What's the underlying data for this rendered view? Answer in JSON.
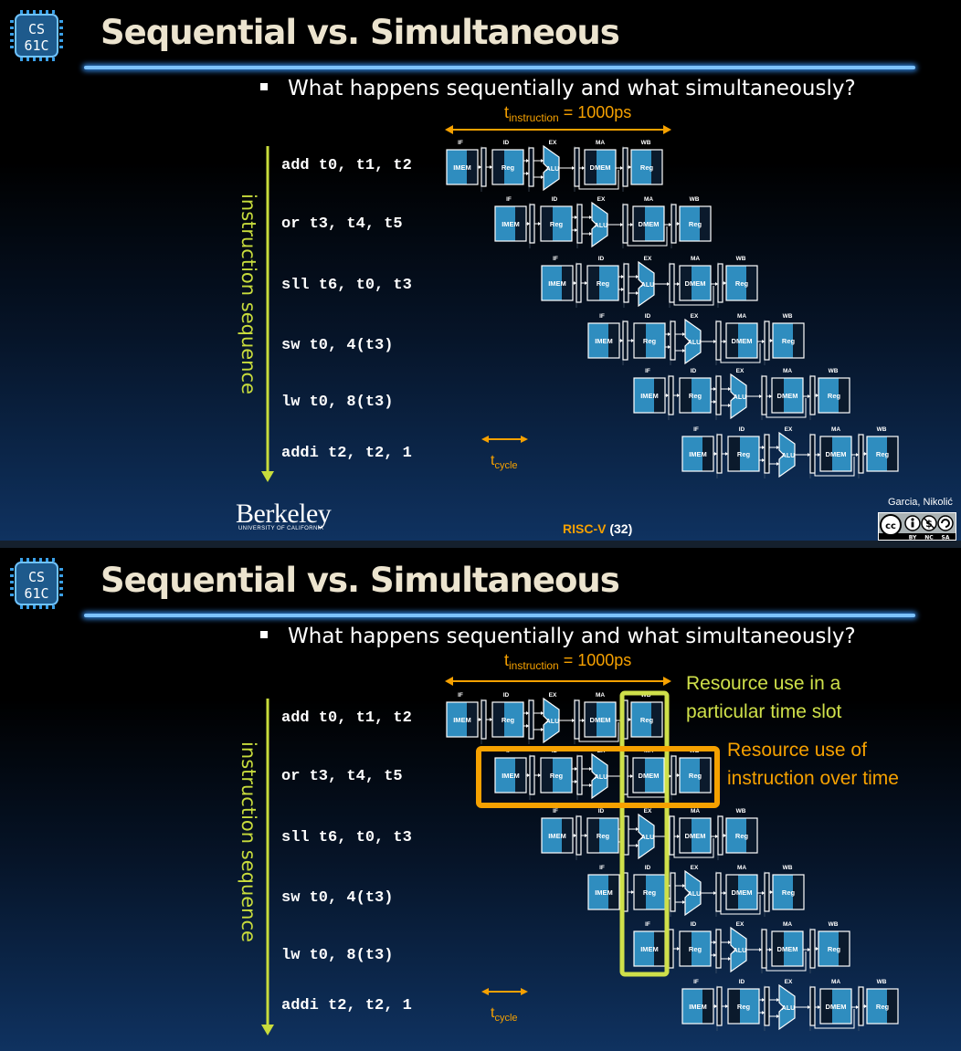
{
  "logo": {
    "line1": "CS",
    "line2": "61C"
  },
  "slide_title": "Sequential vs. Simultaneous",
  "bullet": "What happens sequentially and what simultaneously?",
  "instructions": [
    "add t0, t1, t2",
    "or t3, t4, t5",
    "sll t6, t0, t3",
    "sw t0, 4(t3)",
    "lw t0, 8(t3)",
    "addi t2, t2, 1"
  ],
  "axis_label": "instruction sequence",
  "t_instruction": {
    "symbol": "t",
    "subscript": "instruction",
    "value": "= 1000ps"
  },
  "t_cycle": {
    "symbol": "t",
    "subscript": "cycle"
  },
  "stage_labels": [
    "IF",
    "ID",
    "EX",
    "MA",
    "WB"
  ],
  "unit_labels": {
    "imem": "IMEM",
    "reg": "Reg",
    "alu": "ALU",
    "dmem": "DMEM"
  },
  "berkeley": {
    "name": "Berkeley",
    "sub": "UNIVERSITY OF CALIFORNIA"
  },
  "footer": {
    "topic": "RISC-V",
    "page": "(32)"
  },
  "credit": "Garcia, Nikolić",
  "license": {
    "cc": "cc",
    "by": "BY",
    "nc": "NC",
    "sa": "SA"
  },
  "callouts": {
    "time_slot": [
      "Resource use in a",
      "particular time slot"
    ],
    "over_time": [
      "Resource use of",
      "instruction over time"
    ]
  },
  "colors": {
    "accent_orange": "#f6a100",
    "accent_yellow": "#cfe04a",
    "unit_blue": "#2f8dbf",
    "rule_blue": "#7cc2ff"
  }
}
